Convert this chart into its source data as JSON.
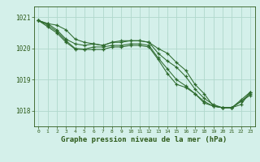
{
  "title": "Graphe pression niveau de la mer (hPa)",
  "background_color": "#d4f0ea",
  "grid_color": "#b0d8cc",
  "line_color": "#2d6a2d",
  "footer_color": "#d4f0ea",
  "text_color": "#2d5a1a",
  "xlim": [
    -0.5,
    23.5
  ],
  "ylim": [
    1017.5,
    1021.35
  ],
  "yticks": [
    1018,
    1019,
    1020,
    1021
  ],
  "xtick_labels": [
    "0",
    "1",
    "2",
    "3",
    "4",
    "5",
    "6",
    "7",
    "8",
    "9",
    "10",
    "11",
    "12",
    "13",
    "14",
    "15",
    "16",
    "17",
    "18",
    "19",
    "20",
    "21",
    "22",
    "23"
  ],
  "series": [
    [
      1020.9,
      1020.8,
      1020.75,
      1020.6,
      1020.3,
      1020.2,
      1020.15,
      1020.1,
      1020.2,
      1020.25,
      1020.25,
      1020.25,
      1020.2,
      1020.0,
      1019.85,
      1019.55,
      1019.3,
      1018.85,
      1018.55,
      1018.15,
      1018.1,
      1018.1,
      1018.2,
      1018.6
    ],
    [
      1020.9,
      1020.8,
      1020.6,
      1020.3,
      1020.15,
      1020.1,
      1020.15,
      1020.1,
      1020.2,
      1020.2,
      1020.25,
      1020.25,
      1020.2,
      1019.85,
      1019.6,
      1019.4,
      1019.1,
      1018.7,
      1018.4,
      1018.2,
      1018.1,
      1018.1,
      1018.35,
      1018.6
    ],
    [
      1020.9,
      1020.75,
      1020.55,
      1020.25,
      1020.0,
      1019.98,
      1020.05,
      1020.05,
      1020.1,
      1020.1,
      1020.15,
      1020.15,
      1020.1,
      1019.7,
      1019.35,
      1019.0,
      1018.8,
      1018.55,
      1018.3,
      1018.15,
      1018.1,
      1018.1,
      1018.3,
      1018.55
    ],
    [
      1020.9,
      1020.7,
      1020.5,
      1020.2,
      1019.98,
      1019.97,
      1019.97,
      1019.97,
      1020.05,
      1020.05,
      1020.1,
      1020.1,
      1020.05,
      1019.65,
      1019.2,
      1018.85,
      1018.75,
      1018.55,
      1018.25,
      1018.15,
      1018.1,
      1018.1,
      1018.3,
      1018.5
    ]
  ]
}
